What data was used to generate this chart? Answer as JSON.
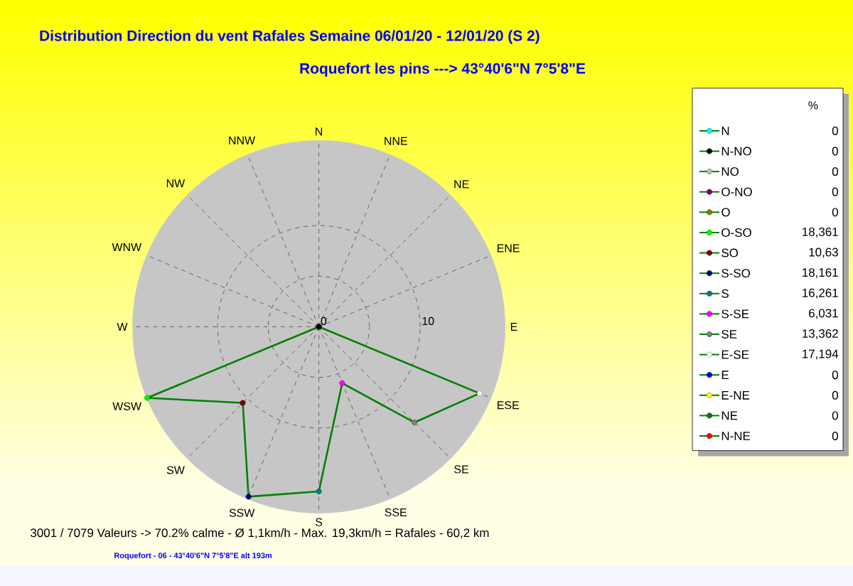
{
  "chart_data": {
    "type": "radar",
    "title": "Distribution Direction du vent Rafales  Semaine 06/01/20 - 12/01/20 (S 2)",
    "subtitle": "Roquefort les pins    --->  43°40'6\"N 7°5'8\"E",
    "categories": [
      "N",
      "NNE",
      "NE",
      "ENE",
      "E",
      "ESE",
      "SE",
      "SSE",
      "S",
      "SSW",
      "SW",
      "WSW",
      "W",
      "WNW",
      "NW",
      "NNW"
    ],
    "ylim": [
      0,
      18.4
    ],
    "yticks": [
      0,
      10
    ],
    "grid": true,
    "marker": "circle",
    "annotations": [
      "3001 / 7079 Valeurs  -> 70.2% calme   -   Ø 1,1km/h  -  Max. 19,3km/h = Rafales   -   60,2 km",
      "Roquefort - 06   -   43°40'6\"N 7°5'8\"E alt 193m",
      "%",
      "N",
      "0",
      "N-NO",
      "0",
      "NO",
      "0",
      "O-NO",
      "0",
      "O",
      "0",
      "O-SO",
      "18,361",
      "SO",
      "10,63",
      "S-SO",
      "18,161",
      "S",
      "16,261",
      "S-SE",
      "6,031",
      "SE",
      "13,362",
      "E-SE",
      "17,194",
      "E",
      "0",
      "E-NE",
      "0",
      "NE",
      "0",
      "N-NE",
      "0"
    ],
    "series": [
      {
        "color": "#008000",
        "colors": [
          "#00ffff",
          "#ff0000",
          "#008000",
          "#ffff00",
          "#0000ff",
          "#ffffff",
          "#808080",
          "#ff00ff",
          "#008080",
          "#000080",
          "#800000",
          "#00ff00",
          "#808000",
          "#800080",
          "#c0c0c0",
          "#000000"
        ],
        "values": [
          0,
          0,
          0,
          0,
          0,
          17.194,
          13.362,
          6.031,
          16.261,
          18.161,
          10.63,
          18.361,
          0,
          0,
          0,
          0
        ]
      }
    ]
  }
}
